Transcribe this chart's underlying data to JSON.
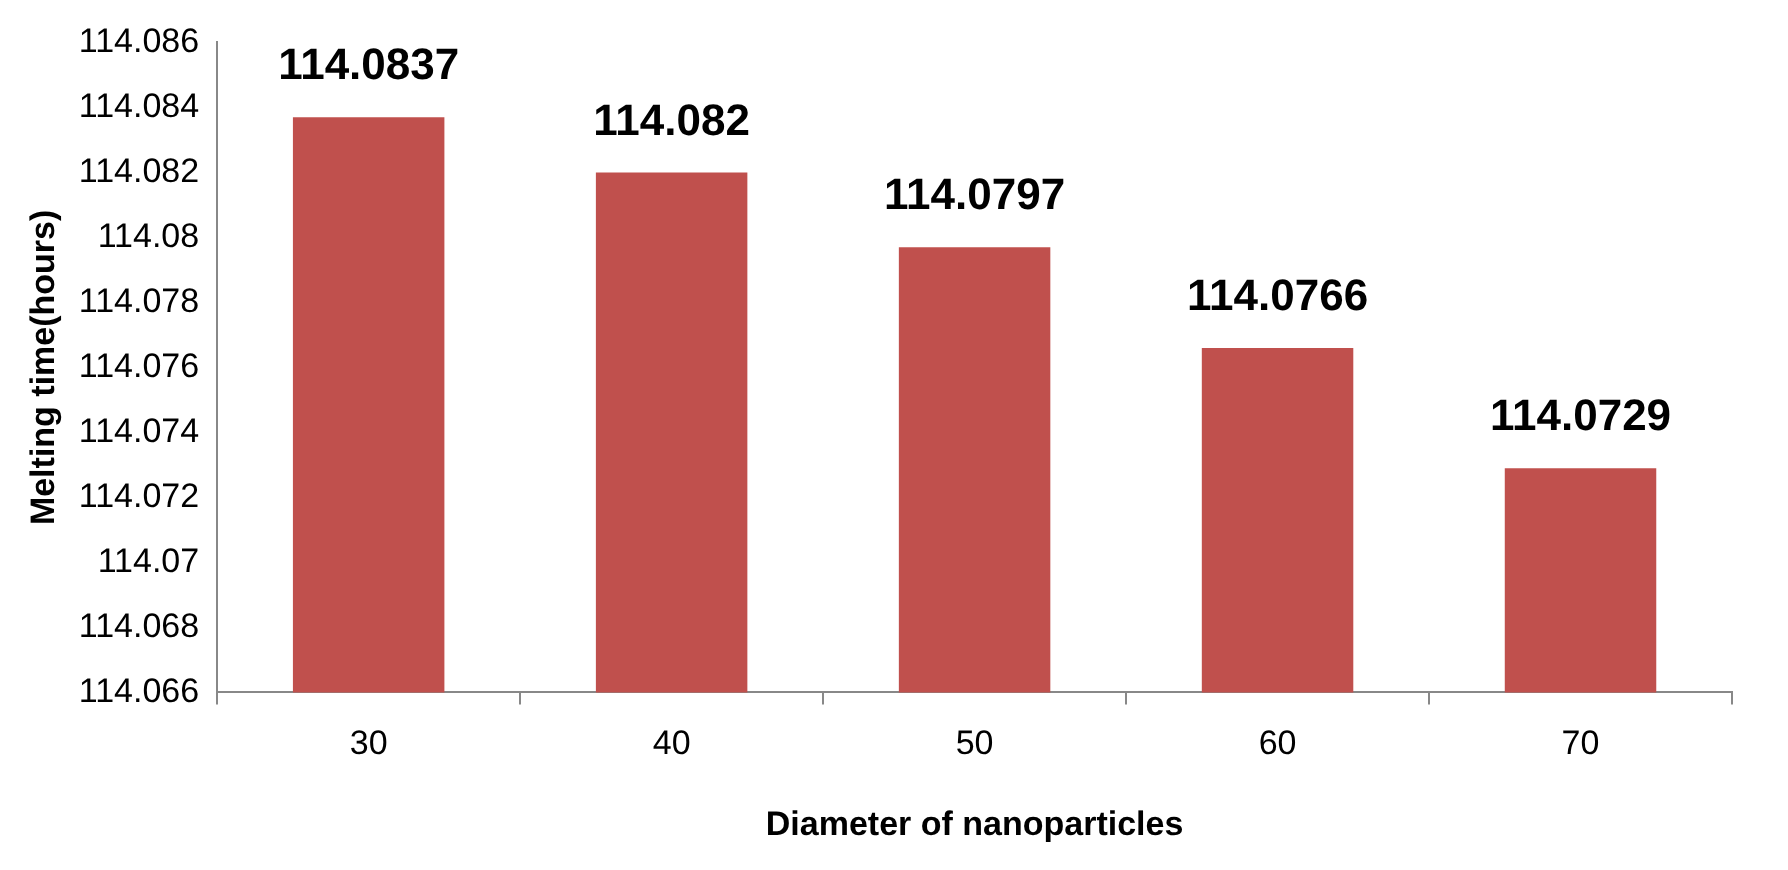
{
  "chart_data": {
    "type": "bar",
    "xlabel": "Diameter of nanoparticles",
    "ylabel": "Melting time(hours)",
    "categories": [
      "30",
      "40",
      "50",
      "60",
      "70"
    ],
    "values": [
      114.0837,
      114.082,
      114.0797,
      114.0766,
      114.0729
    ],
    "color": "#c0504d",
    "ylim": [
      114.066,
      114.086
    ],
    "yticks": [
      114.066,
      114.068,
      114.07,
      114.072,
      114.074,
      114.076,
      114.078,
      114.08,
      114.082,
      114.084,
      114.086
    ],
    "grid": false,
    "legend": false,
    "data_labels": true
  }
}
